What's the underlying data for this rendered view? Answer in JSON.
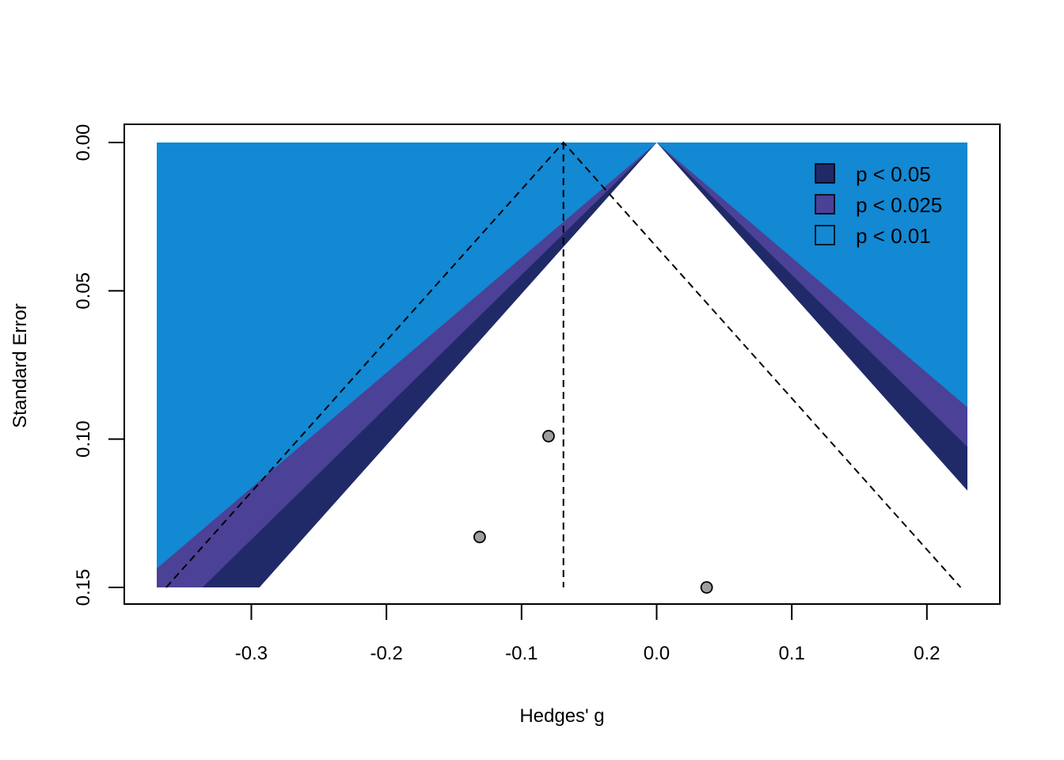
{
  "chart_data": {
    "type": "scatter",
    "subtype": "contour-enhanced funnel plot",
    "xlabel": "Hedges' g",
    "ylabel": "Standard Error",
    "xlim": [
      -0.37,
      0.23
    ],
    "ylim": [
      0.15,
      0.0
    ],
    "y_reversed": true,
    "x_ticks": [
      "-0.3",
      "-0.2",
      "-0.1",
      "0.0",
      "0.1",
      "0.2"
    ],
    "y_ticks": [
      "0.00",
      "0.05",
      "0.10",
      "0.15"
    ],
    "points": [
      {
        "x": -0.08,
        "y": 0.099
      },
      {
        "x": -0.131,
        "y": 0.133
      },
      {
        "x": 0.037,
        "y": 0.15
      }
    ],
    "summary_estimate": -0.069,
    "contour_center": 0.0,
    "contours": [
      {
        "label": "p < 0.05",
        "z": 1.96,
        "color": "#202a68"
      },
      {
        "label": "p < 0.025",
        "z": 2.241,
        "color": "#4b4196"
      },
      {
        "label": "p < 0.01",
        "z": 2.576,
        "color": "#1388d3"
      }
    ],
    "background_color": "#1388d3",
    "point_color": "#9e9e9e",
    "grid": false,
    "legend": "top-right",
    "legend_entries": [
      "p < 0.05",
      "p < 0.025",
      "p < 0.01"
    ]
  }
}
